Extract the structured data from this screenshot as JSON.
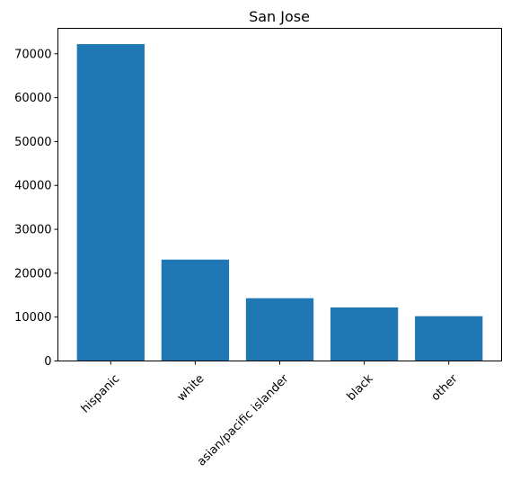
{
  "chart_data": {
    "type": "bar",
    "title": "San Jose",
    "categories": [
      "hispanic",
      "white",
      "asian/pacific islander",
      "black",
      "other"
    ],
    "values": [
      72200,
      23100,
      14300,
      12200,
      10200
    ],
    "ylim": [
      0,
      75800
    ],
    "yticks": [
      0,
      10000,
      20000,
      30000,
      40000,
      50000,
      60000,
      70000
    ],
    "xlabel": "",
    "ylabel": "",
    "bar_color": "#1f77b4",
    "grid": false,
    "legend": "none"
  }
}
